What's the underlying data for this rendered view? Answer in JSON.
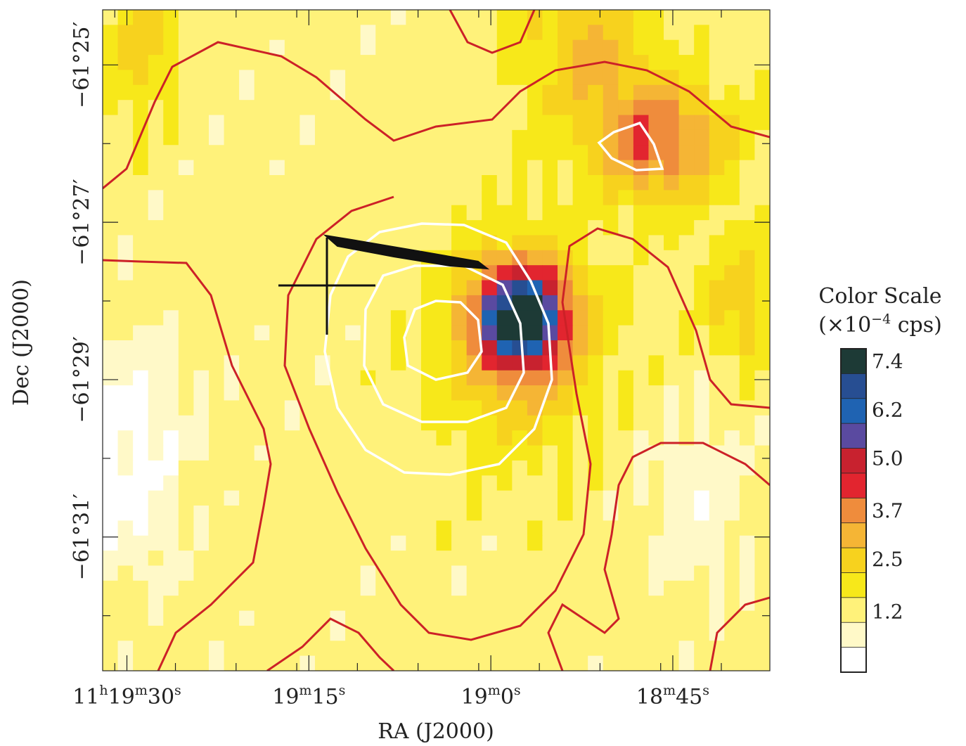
{
  "chart_data": {
    "type": "heatmap",
    "title": "",
    "xlabel": "RA (J2000)",
    "ylabel": "Dec (J2000)",
    "x_ticks": [
      {
        "h": "11",
        "m": "19",
        "s": "30"
      },
      {
        "h": "",
        "m": "19",
        "s": "15"
      },
      {
        "h": "",
        "m": "19",
        "s": "0"
      },
      {
        "h": "",
        "m": "18",
        "s": "45"
      }
    ],
    "y_ticks": [
      "−61°25′",
      "−61°27′",
      "−61°29′",
      "−61°31′"
    ],
    "x_tick_values_s": [
      690,
      675,
      660,
      645
    ],
    "y_tick_values_arcmin": [
      -25,
      -27,
      -29,
      -31
    ],
    "xlim_s": [
      692,
      637
    ],
    "ylim_arcmin": [
      -32.7,
      -24.3
    ],
    "colorbar": {
      "title_line1": "Color Scale",
      "title_line2_prefix": "(×10",
      "title_line2_exp": "−4",
      "title_line2_suffix": " cps)",
      "tick_labels": [
        "7.4",
        "6.2",
        "5.0",
        "3.7",
        "2.5",
        "1.2"
      ],
      "levels": [
        0,
        0.6,
        1.2,
        1.85,
        2.5,
        3.1,
        3.7,
        4.35,
        5.0,
        5.6,
        6.2,
        6.8,
        7.4
      ],
      "colors": [
        "#ffffff",
        "#fff9c8",
        "#fff27a",
        "#f7e81a",
        "#f7d21e",
        "#f5b535",
        "#ef8c3c",
        "#e2252f",
        "#c8222f",
        "#5a4aa0",
        "#1f63b2",
        "#274e92",
        "#1d3a36"
      ]
    },
    "source": {
      "ra_s": 657.5,
      "dec_arcmin": -28.2,
      "peak_cps_1e4": 7.4
    },
    "secondary_peak": {
      "ra_s": 646,
      "dec_arcmin": -26.0,
      "value_cps_1e4": 4.6
    },
    "contour_colors": {
      "low": "#cc2127",
      "high": "#ffffff"
    },
    "grid": false
  }
}
